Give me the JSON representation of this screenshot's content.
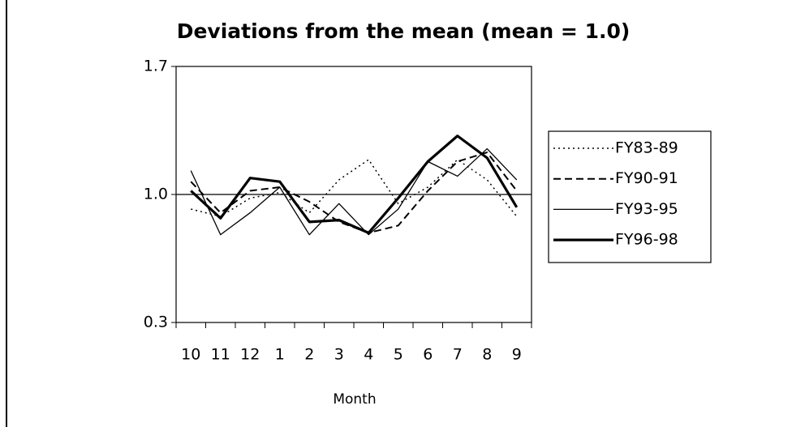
{
  "chart_data": {
    "type": "line",
    "title": "Deviations from the mean (mean = 1.0)",
    "xlabel": "Month",
    "categories": [
      "10",
      "11",
      "12",
      "1",
      "2",
      "3",
      "4",
      "5",
      "6",
      "7",
      "8",
      "9"
    ],
    "series": [
      {
        "name": "FY83-89",
        "color": "#000000",
        "width": 1.5,
        "dash": "2,4",
        "values": [
          0.92,
          0.88,
          0.98,
          1.01,
          0.9,
          1.08,
          1.19,
          0.95,
          1.04,
          1.19,
          1.08,
          0.88
        ]
      },
      {
        "name": "FY90-91",
        "color": "#000000",
        "width": 2,
        "dash": "9,5",
        "values": [
          1.07,
          0.9,
          1.02,
          1.04,
          0.96,
          0.85,
          0.79,
          0.83,
          1.02,
          1.18,
          1.23,
          1.02
        ]
      },
      {
        "name": "FY93-95",
        "color": "#000000",
        "width": 1.3,
        "dash": "",
        "values": [
          1.13,
          0.78,
          0.9,
          1.04,
          0.78,
          0.95,
          0.78,
          0.92,
          1.18,
          1.1,
          1.25,
          1.08
        ]
      },
      {
        "name": "FY96-98",
        "color": "#000000",
        "width": 3.2,
        "dash": "",
        "values": [
          1.02,
          0.87,
          1.09,
          1.07,
          0.85,
          0.86,
          0.79,
          0.98,
          1.18,
          1.32,
          1.2,
          0.93
        ]
      }
    ],
    "ylim": [
      0.3,
      1.7
    ],
    "yticks": [
      0.3,
      {
        "value": 1,
        "label": "1.0"
      },
      1.7
    ],
    "mean": 1,
    "legend": "right"
  }
}
